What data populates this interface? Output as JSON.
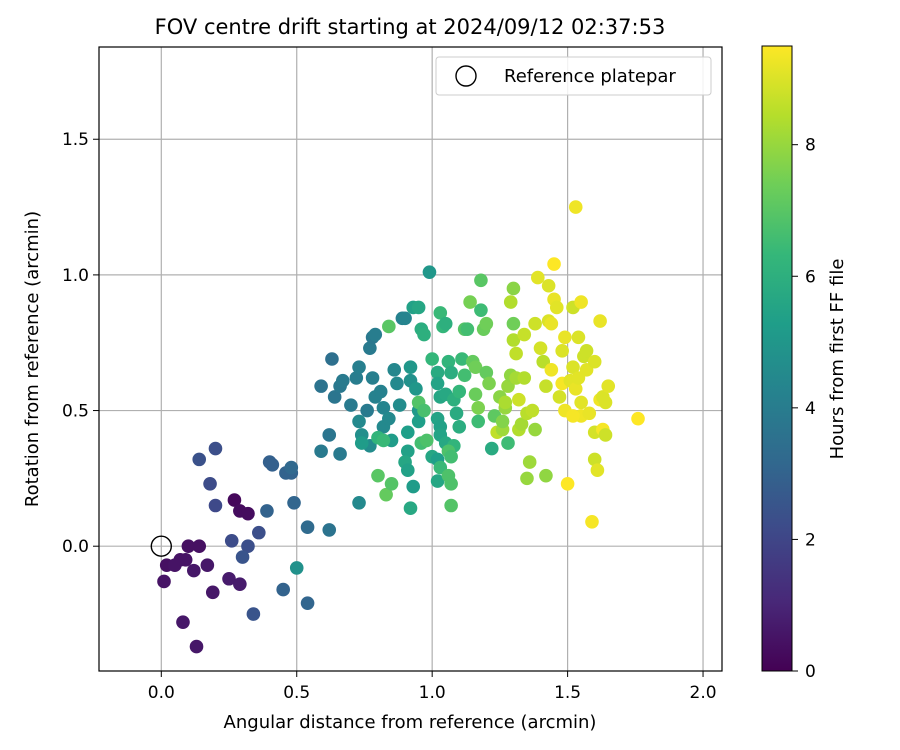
{
  "chart_data": {
    "type": "scatter",
    "title": "FOV centre drift starting at 2024/09/12 02:37:53",
    "xlabel": "Angular distance from reference (arcmin)",
    "ylabel": "Rotation from reference (arcmin)",
    "xlim": [
      -0.23,
      2.07
    ],
    "ylim": [
      -0.46,
      1.84
    ],
    "xticks": [
      0.0,
      0.5,
      1.0,
      1.5,
      2.0
    ],
    "xtick_labels": [
      "0.0",
      "0.5",
      "1.0",
      "1.5",
      "2.0"
    ],
    "yticks": [
      0.0,
      0.5,
      1.0,
      1.5
    ],
    "ytick_labels": [
      "0.0",
      "0.5",
      "1.0",
      "1.5"
    ],
    "grid": true,
    "legend": {
      "placement": "top-right",
      "entries": [
        "Reference platepar"
      ]
    },
    "reference_point": {
      "x": 0.0,
      "y": 0.0,
      "marker": "open-circle",
      "color": "#000000"
    },
    "colorbar": {
      "label": "Hours from first FF file",
      "range": [
        0,
        9.5
      ],
      "ticks": [
        0,
        2,
        4,
        6,
        8
      ],
      "tick_labels": [
        "0",
        "2",
        "4",
        "6",
        "8"
      ],
      "colormap": "viridis",
      "colormap_stops": [
        "#440154",
        "#482878",
        "#3e4989",
        "#31688e",
        "#26828e",
        "#1f9e89",
        "#35b779",
        "#6ece58",
        "#b5de2b",
        "#fde725"
      ]
    },
    "points": [
      [
        0.27,
        0.17,
        0.2
      ],
      [
        0.29,
        0.13,
        0.3
      ],
      [
        0.32,
        0.12,
        0.3
      ],
      [
        0.14,
        0.0,
        0.4
      ],
      [
        0.1,
        0.0,
        0.4
      ],
      [
        0.07,
        -0.05,
        0.5
      ],
      [
        0.09,
        -0.05,
        0.5
      ],
      [
        0.02,
        -0.07,
        0.4
      ],
      [
        0.05,
        -0.07,
        0.5
      ],
      [
        0.17,
        -0.07,
        0.6
      ],
      [
        0.12,
        -0.09,
        0.6
      ],
      [
        0.25,
        -0.12,
        0.7
      ],
      [
        0.29,
        -0.14,
        0.7
      ],
      [
        0.01,
        -0.13,
        0.5
      ],
      [
        0.19,
        -0.17,
        0.6
      ],
      [
        0.08,
        -0.28,
        0.6
      ],
      [
        0.13,
        -0.37,
        0.6
      ],
      [
        0.14,
        0.32,
        2.4
      ],
      [
        0.2,
        0.36,
        2.3
      ],
      [
        0.18,
        0.23,
        2.2
      ],
      [
        0.2,
        0.15,
        2.1
      ],
      [
        0.26,
        0.02,
        2.2
      ],
      [
        0.32,
        0.0,
        2.3
      ],
      [
        0.36,
        0.05,
        2.3
      ],
      [
        0.3,
        -0.04,
        2.5
      ],
      [
        0.34,
        -0.25,
        2.5
      ],
      [
        0.4,
        0.31,
        2.9
      ],
      [
        0.41,
        0.3,
        2.9
      ],
      [
        0.46,
        0.27,
        3.0
      ],
      [
        0.48,
        0.27,
        3.0
      ],
      [
        0.48,
        0.29,
        3.2
      ],
      [
        0.39,
        0.13,
        3.0
      ],
      [
        0.49,
        0.16,
        3.1
      ],
      [
        0.45,
        -0.16,
        3.0
      ],
      [
        0.54,
        -0.21,
        3.1
      ],
      [
        0.54,
        0.07,
        3.3
      ],
      [
        0.5,
        -0.08,
        4.8
      ],
      [
        0.62,
        0.06,
        3.6
      ],
      [
        0.59,
        0.35,
        3.9
      ],
      [
        0.62,
        0.41,
        3.7
      ],
      [
        0.66,
        0.34,
        3.9
      ],
      [
        0.59,
        0.59,
        3.6
      ],
      [
        0.63,
        0.69,
        3.5
      ],
      [
        0.64,
        0.55,
        3.7
      ],
      [
        0.66,
        0.59,
        3.8
      ],
      [
        0.67,
        0.61,
        3.9
      ],
      [
        0.7,
        0.52,
        3.9
      ],
      [
        0.72,
        0.62,
        4.0
      ],
      [
        0.76,
        0.5,
        3.9
      ],
      [
        0.73,
        0.66,
        4.1
      ],
      [
        0.77,
        0.73,
        3.9
      ],
      [
        0.78,
        0.77,
        3.8
      ],
      [
        0.79,
        0.78,
        4.0
      ],
      [
        0.78,
        0.62,
        4.1
      ],
      [
        0.79,
        0.55,
        4.2
      ],
      [
        0.81,
        0.57,
        4.2
      ],
      [
        0.82,
        0.51,
        4.3
      ],
      [
        0.82,
        0.44,
        4.5
      ],
      [
        0.77,
        0.37,
        4.6
      ],
      [
        0.73,
        0.46,
        4.5
      ],
      [
        0.74,
        0.41,
        4.7
      ],
      [
        0.74,
        0.38,
        5.2
      ],
      [
        0.73,
        0.16,
        4.5
      ],
      [
        0.84,
        0.47,
        4.5
      ],
      [
        0.85,
        0.39,
        5.2
      ],
      [
        0.86,
        0.65,
        4.4
      ],
      [
        0.87,
        0.6,
        4.5
      ],
      [
        0.88,
        0.52,
        4.6
      ],
      [
        0.89,
        0.84,
        4.2
      ],
      [
        0.9,
        0.84,
        4.3
      ],
      [
        0.92,
        0.61,
        4.8
      ],
      [
        0.92,
        0.66,
        5.0
      ],
      [
        0.94,
        0.58,
        5.0
      ],
      [
        0.95,
        0.5,
        5.1
      ],
      [
        0.95,
        0.46,
        5.3
      ],
      [
        0.91,
        0.42,
        5.3
      ],
      [
        0.91,
        0.35,
        5.4
      ],
      [
        0.9,
        0.31,
        5.6
      ],
      [
        0.93,
        0.22,
        5.2
      ],
      [
        0.91,
        0.28,
        5.4
      ],
      [
        0.92,
        0.14,
        5.7
      ],
      [
        0.93,
        0.88,
        5.4
      ],
      [
        0.95,
        0.88,
        5.6
      ],
      [
        0.96,
        0.8,
        5.9
      ],
      [
        0.97,
        0.78,
        6.0
      ],
      [
        0.99,
        1.01,
        5.0
      ],
      [
        1.0,
        0.69,
        6.3
      ],
      [
        1.02,
        0.64,
        5.8
      ],
      [
        1.02,
        0.6,
        5.5
      ],
      [
        1.03,
        0.55,
        5.6
      ],
      [
        1.05,
        0.56,
        5.7
      ],
      [
        1.02,
        0.47,
        5.5
      ],
      [
        1.03,
        0.44,
        5.4
      ],
      [
        1.03,
        0.41,
        5.5
      ],
      [
        1.05,
        0.38,
        5.7
      ],
      [
        1.0,
        0.33,
        5.6
      ],
      [
        1.02,
        0.32,
        5.3
      ],
      [
        1.02,
        0.24,
        5.6
      ],
      [
        1.03,
        0.29,
        6.4
      ],
      [
        1.03,
        0.86,
        6.4
      ],
      [
        1.04,
        0.81,
        6.3
      ],
      [
        1.05,
        0.82,
        6.0
      ],
      [
        1.06,
        0.68,
        6.2
      ],
      [
        1.07,
        0.64,
        5.9
      ],
      [
        1.08,
        0.54,
        6.0
      ],
      [
        1.09,
        0.49,
        5.8
      ],
      [
        1.1,
        0.44,
        5.9
      ],
      [
        1.08,
        0.37,
        6.2
      ],
      [
        1.06,
        0.35,
        6.8
      ],
      [
        1.07,
        0.33,
        6.6
      ],
      [
        1.06,
        0.26,
        6.8
      ],
      [
        1.07,
        0.23,
        6.8
      ],
      [
        1.07,
        0.15,
        6.9
      ],
      [
        0.8,
        0.4,
        6.2
      ],
      [
        0.82,
        0.39,
        6.4
      ],
      [
        0.8,
        0.26,
        7.0
      ],
      [
        0.83,
        0.19,
        7.2
      ],
      [
        0.85,
        0.23,
        6.9
      ],
      [
        0.84,
        0.81,
        7.0
      ],
      [
        0.96,
        0.38,
        6.6
      ],
      [
        0.98,
        0.39,
        6.8
      ],
      [
        0.95,
        0.53,
        6.9
      ],
      [
        0.97,
        0.5,
        6.7
      ],
      [
        1.1,
        0.57,
        6.3
      ],
      [
        1.11,
        0.69,
        6.4
      ],
      [
        1.12,
        0.63,
        6.6
      ],
      [
        1.12,
        0.8,
        6.9
      ],
      [
        1.13,
        0.8,
        6.6
      ],
      [
        1.14,
        0.9,
        7.5
      ],
      [
        1.15,
        0.68,
        7.2
      ],
      [
        1.16,
        0.66,
        7.4
      ],
      [
        1.16,
        0.56,
        7.3
      ],
      [
        1.17,
        0.51,
        7.6
      ],
      [
        1.17,
        0.46,
        6.5
      ],
      [
        1.18,
        0.87,
        6.5
      ],
      [
        1.18,
        0.98,
        7.0
      ],
      [
        1.19,
        0.8,
        7.3
      ],
      [
        1.2,
        0.82,
        7.4
      ],
      [
        1.2,
        0.64,
        7.2
      ],
      [
        1.21,
        0.6,
        7.6
      ],
      [
        1.22,
        0.36,
        5.8
      ],
      [
        1.23,
        0.48,
        7.1
      ],
      [
        1.24,
        0.42,
        8.6
      ],
      [
        1.25,
        0.55,
        7.8
      ],
      [
        1.26,
        0.43,
        8.1
      ],
      [
        1.26,
        0.46,
        7.7
      ],
      [
        1.27,
        0.51,
        8.0
      ],
      [
        1.27,
        0.53,
        8.3
      ],
      [
        1.28,
        0.38,
        6.5
      ],
      [
        1.28,
        0.59,
        8.0
      ],
      [
        1.29,
        0.63,
        7.9
      ],
      [
        1.29,
        0.9,
        8.4
      ],
      [
        1.3,
        0.82,
        7.4
      ],
      [
        1.3,
        0.95,
        7.8
      ],
      [
        1.3,
        0.76,
        8.4
      ],
      [
        1.31,
        0.71,
        8.6
      ],
      [
        1.31,
        0.62,
        8.2
      ],
      [
        1.32,
        0.54,
        8.8
      ],
      [
        1.32,
        0.43,
        8.4
      ],
      [
        1.33,
        0.45,
        8.2
      ],
      [
        1.34,
        0.62,
        8.4
      ],
      [
        1.34,
        0.78,
        8.7
      ],
      [
        1.35,
        0.49,
        8.5
      ],
      [
        1.35,
        0.25,
        8.0
      ],
      [
        1.36,
        0.31,
        8.1
      ],
      [
        1.37,
        0.5,
        8.6
      ],
      [
        1.38,
        0.82,
        8.8
      ],
      [
        1.38,
        0.43,
        8.0
      ],
      [
        1.39,
        0.99,
        9.1
      ],
      [
        1.4,
        0.73,
        8.9
      ],
      [
        1.41,
        0.68,
        8.5
      ],
      [
        1.42,
        0.59,
        8.7
      ],
      [
        1.42,
        0.26,
        7.9
      ],
      [
        1.43,
        0.96,
        9.0
      ],
      [
        1.43,
        0.83,
        9.0
      ],
      [
        1.44,
        0.82,
        9.2
      ],
      [
        1.44,
        0.65,
        9.3
      ],
      [
        1.45,
        0.91,
        9.2
      ],
      [
        1.45,
        1.04,
        9.5
      ],
      [
        1.46,
        0.88,
        9.1
      ],
      [
        1.47,
        0.55,
        8.9
      ],
      [
        1.48,
        0.72,
        9.0
      ],
      [
        1.48,
        0.6,
        9.4
      ],
      [
        1.49,
        0.77,
        9.2
      ],
      [
        1.49,
        0.5,
        9.3
      ],
      [
        1.5,
        0.23,
        9.5
      ],
      [
        1.51,
        0.61,
        9.1
      ],
      [
        1.52,
        0.66,
        9.0
      ],
      [
        1.52,
        0.88,
        8.8
      ],
      [
        1.53,
        1.25,
        9.3
      ],
      [
        1.54,
        0.77,
        9.0
      ],
      [
        1.55,
        0.9,
        9.3
      ],
      [
        1.55,
        0.48,
        9.3
      ],
      [
        1.56,
        0.7,
        8.8
      ],
      [
        1.57,
        0.65,
        9.1
      ],
      [
        1.58,
        0.49,
        9.2
      ],
      [
        1.59,
        0.09,
        9.4
      ],
      [
        1.6,
        0.42,
        8.9
      ],
      [
        1.6,
        0.32,
        8.8
      ],
      [
        1.61,
        0.28,
        9.1
      ],
      [
        1.62,
        0.83,
        9.2
      ],
      [
        1.62,
        0.54,
        9.3
      ],
      [
        1.63,
        0.55,
        9.0
      ],
      [
        1.63,
        0.43,
        9.4
      ],
      [
        1.64,
        0.41,
        8.8
      ],
      [
        1.65,
        0.59,
        9.1
      ],
      [
        1.64,
        0.53,
        9.0
      ],
      [
        1.76,
        0.47,
        9.5
      ],
      [
        1.55,
        0.53,
        9.1
      ],
      [
        1.53,
        0.58,
        9.2
      ],
      [
        1.6,
        0.68,
        9.0
      ],
      [
        1.52,
        0.48,
        9.4
      ],
      [
        1.57,
        0.72,
        8.8
      ],
      [
        1.54,
        0.62,
        9.1
      ]
    ]
  }
}
